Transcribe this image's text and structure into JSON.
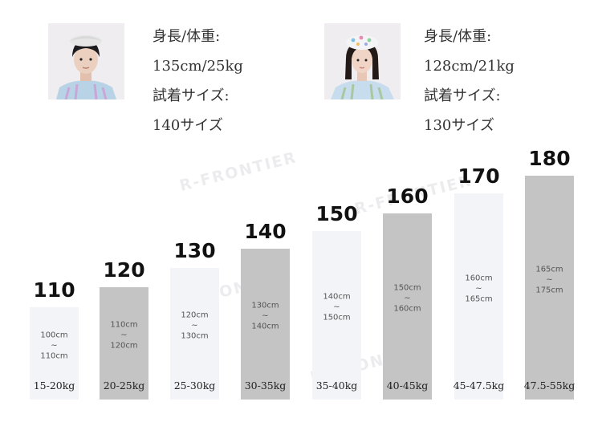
{
  "models": [
    {
      "height_weight_label": "身長/体重:",
      "height_weight": "135cm/25kg",
      "size_label": "試着サイズ:",
      "size": "140サイズ"
    },
    {
      "height_weight_label": "身長/体重:",
      "height_weight": "128cm/21kg",
      "size_label": "試着サイズ:",
      "size": "130サイズ"
    }
  ],
  "watermark": "R-FRONTIER",
  "sizes": [
    {
      "size": "110",
      "range_min": "100cm",
      "sep": "~",
      "range_max": "110cm",
      "weight": "15-20kg"
    },
    {
      "size": "120",
      "range_min": "110cm",
      "sep": "~",
      "range_max": "120cm",
      "weight": "20-25kg"
    },
    {
      "size": "130",
      "range_min": "120cm",
      "sep": "~",
      "range_max": "130cm",
      "weight": "25-30kg"
    },
    {
      "size": "140",
      "range_min": "130cm",
      "sep": "~",
      "range_max": "140cm",
      "weight": "30-35kg"
    },
    {
      "size": "150",
      "range_min": "140cm",
      "sep": "~",
      "range_max": "150cm",
      "weight": "35-40kg"
    },
    {
      "size": "160",
      "range_min": "150cm",
      "sep": "~",
      "range_max": "160cm",
      "weight": "40-45kg"
    },
    {
      "size": "170",
      "range_min": "160cm",
      "sep": "~",
      "range_max": "165cm",
      "weight": "45-47.5kg"
    },
    {
      "size": "180",
      "range_min": "165cm",
      "sep": "~",
      "range_max": "175cm",
      "weight": "47.5-55kg"
    }
  ],
  "colors": {
    "light_bar": "#f3f4f8",
    "dark_bar": "#c4c4c4"
  }
}
